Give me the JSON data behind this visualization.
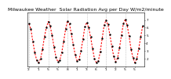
{
  "title": "Milwaukee Weather  Solar Radiation Avg per Day W/m2/minute",
  "line_color": "#FF0000",
  "marker_color": "#000000",
  "bg_color": "#FFFFFF",
  "grid_color": "#AAAAAA",
  "y_values": [
    6.5,
    5.8,
    4.2,
    2.8,
    1.8,
    1.5,
    2.0,
    3.2,
    4.8,
    6.0,
    6.8,
    6.2,
    5.0,
    3.5,
    2.2,
    1.6,
    1.8,
    2.8,
    4.2,
    5.8,
    6.9,
    6.5,
    5.2,
    3.8,
    2.5,
    1.7,
    1.9,
    3.0,
    4.5,
    6.1,
    6.7,
    6.0,
    4.8,
    3.3,
    2.0,
    1.5,
    1.7,
    2.9,
    4.6,
    6.3,
    7.0,
    6.4,
    5.1,
    3.6,
    2.3,
    1.6,
    2.1,
    3.4,
    5.0,
    6.5,
    7.1,
    6.3,
    4.9,
    3.2,
    2.1,
    1.5,
    2.0,
    3.3,
    4.8,
    6.2
  ],
  "ylim": [
    1,
    8
  ],
  "yticks": [
    2,
    3,
    4,
    5,
    6,
    7
  ],
  "grid_positions": [
    0,
    10,
    20,
    30,
    40,
    50
  ],
  "x_tick_positions": [
    0,
    5,
    10,
    15,
    20,
    25,
    30,
    35,
    40,
    45,
    50,
    55
  ],
  "x_tick_labels": [
    "'2",
    "'1",
    "'5",
    "'5",
    "'8",
    "'1",
    "'3",
    "'6",
    "'1",
    "'2",
    "'5",
    "'5"
  ],
  "title_fontsize": 4.5,
  "tick_fontsize": 3.0,
  "linewidth": 0.8,
  "markersize": 1.5
}
